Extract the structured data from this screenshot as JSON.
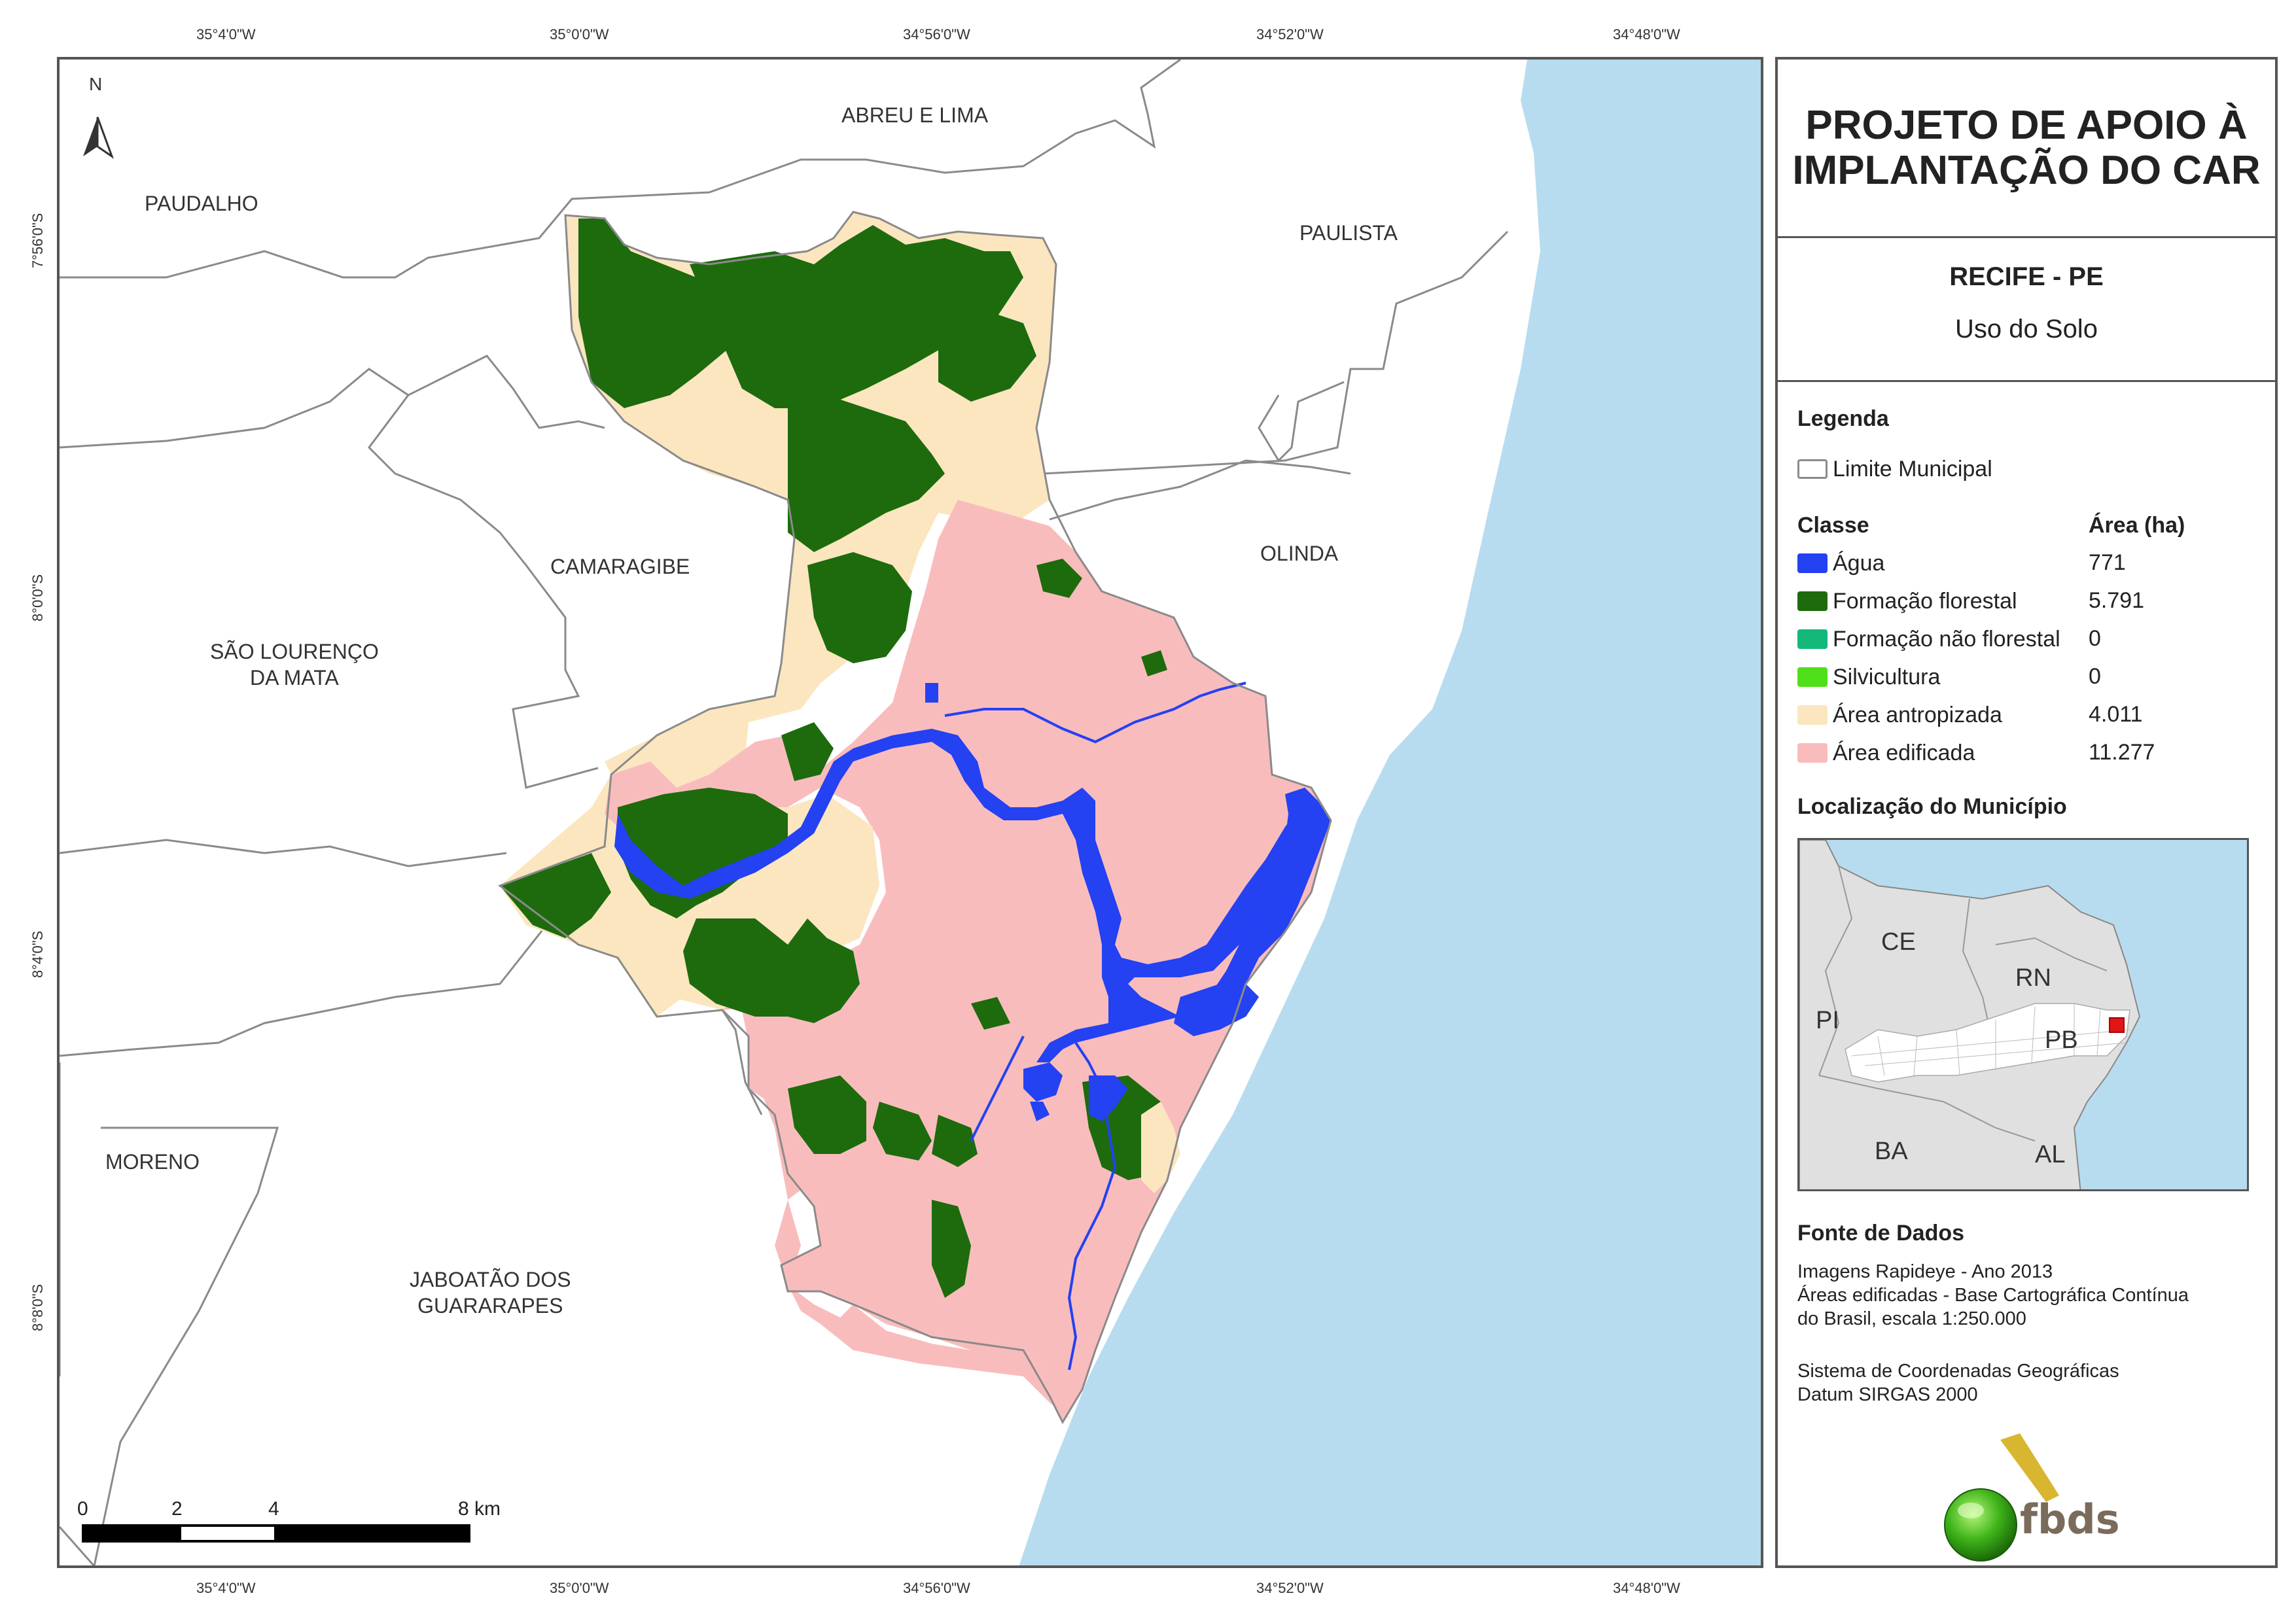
{
  "coords": {
    "top": [
      "35°4'0\"W",
      "35°0'0\"W",
      "34°56'0\"W",
      "34°52'0\"W",
      "34°48'0\"W"
    ],
    "bottom": [
      "35°4'0\"W",
      "35°0'0\"W",
      "34°56'0\"W",
      "34°52'0\"W",
      "34°48'0\"W"
    ],
    "left": [
      "7°56'0\"S",
      "8°0'0\"S",
      "8°4'0\"S",
      "8°8'0\"S"
    ]
  },
  "municipalities": {
    "abreu_e_lima": "ABREU E LIMA",
    "paudalho": "PAUDALHO",
    "paulista": "PAULISTA",
    "camaragibe": "CAMARAGIBE",
    "olinda": "OLINDA",
    "sao_lourenco_1": "SÃO LOURENÇO",
    "sao_lourenco_2": "DA MATA",
    "moreno": "MORENO",
    "jaboatao_1": "JABOATÃO DOS",
    "jaboatao_2": "GUARARAPES"
  },
  "north_label": "N",
  "scale": {
    "labels": [
      "0",
      "2",
      "4",
      "8 km"
    ]
  },
  "panel": {
    "title_line1": "PROJETO DE APOIO À",
    "title_line2": "IMPLANTAÇÃO DO CAR",
    "city": "RECIFE - PE",
    "theme": "Uso do Solo",
    "legend_heading": "Legenda",
    "boundary_label": "Limite Municipal",
    "class_heading": "Classe",
    "area_heading": "Área (ha)",
    "classes": [
      {
        "name": "Água",
        "area": "771",
        "color": "#2441f2"
      },
      {
        "name": "Formação florestal",
        "area": "5.791",
        "color": "#1d6b0d"
      },
      {
        "name": "Formação não florestal",
        "area": "0",
        "color": "#14b87a"
      },
      {
        "name": "Silvicultura",
        "area": "0",
        "color": "#4fe01a"
      },
      {
        "name": "Área antropizada",
        "area": "4.011",
        "color": "#fbe6c0"
      },
      {
        "name": "Área edificada",
        "area": "11.277",
        "color": "#f9bcbd"
      }
    ],
    "location_heading": "Localização do Município",
    "inset_labels": {
      "ce": "CE",
      "rn": "RN",
      "pi": "PI",
      "pb": "PB",
      "ba": "BA",
      "al": "AL"
    },
    "source_heading": "Fonte de Dados",
    "source_lines": [
      "Imagens Rapideye - Ano 2013",
      "Áreas edificadas - Base Cartográfica Contínua",
      "do Brasil, escala 1:250.000",
      "",
      "Sistema de Coordenadas Geográficas",
      "Datum SIRGAS 2000"
    ],
    "logo_text": "fbds"
  },
  "colors": {
    "ocean": "#b8dcef",
    "boundary": "#8a8a8a",
    "frame": "#555555"
  }
}
